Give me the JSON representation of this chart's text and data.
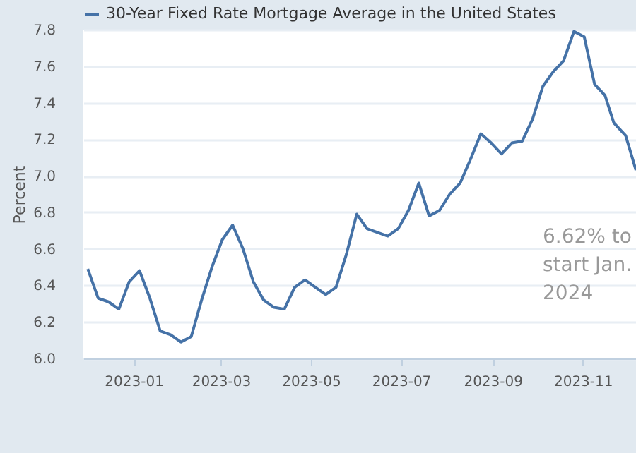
{
  "chart_data": {
    "type": "line",
    "ylabel": "Percent",
    "x": [
      "2022-12-01",
      "2022-12-08",
      "2022-12-15",
      "2022-12-22",
      "2022-12-29",
      "2023-01-05",
      "2023-01-12",
      "2023-01-19",
      "2023-01-26",
      "2023-02-02",
      "2023-02-09",
      "2023-02-16",
      "2023-02-23",
      "2023-03-02",
      "2023-03-09",
      "2023-03-16",
      "2023-03-23",
      "2023-03-30",
      "2023-04-06",
      "2023-04-13",
      "2023-04-20",
      "2023-04-27",
      "2023-05-04",
      "2023-05-11",
      "2023-05-18",
      "2023-05-25",
      "2023-06-01",
      "2023-06-08",
      "2023-06-15",
      "2023-06-22",
      "2023-06-29",
      "2023-07-06",
      "2023-07-13",
      "2023-07-20",
      "2023-07-27",
      "2023-08-03",
      "2023-08-10",
      "2023-08-17",
      "2023-08-24",
      "2023-08-31",
      "2023-09-07",
      "2023-09-14",
      "2023-09-21",
      "2023-09-28",
      "2023-10-05",
      "2023-10-12",
      "2023-10-19",
      "2023-10-26",
      "2023-11-02",
      "2023-11-09",
      "2023-11-16",
      "2023-11-22",
      "2023-11-30",
      "2023-12-07"
    ],
    "series": [
      {
        "name": "30-Year Fixed Rate Mortgage Average in the United States",
        "color": "#4572a7",
        "values": [
          6.49,
          6.33,
          6.31,
          6.27,
          6.42,
          6.48,
          6.33,
          6.15,
          6.13,
          6.09,
          6.12,
          6.32,
          6.5,
          6.65,
          6.73,
          6.6,
          6.42,
          6.32,
          6.28,
          6.27,
          6.39,
          6.43,
          6.39,
          6.35,
          6.39,
          6.57,
          6.79,
          6.71,
          6.69,
          6.67,
          6.71,
          6.81,
          6.96,
          6.78,
          6.81,
          6.9,
          6.96,
          7.09,
          7.23,
          7.18,
          7.12,
          7.18,
          7.19,
          7.31,
          7.49,
          7.57,
          7.63,
          7.79,
          7.76,
          7.5,
          7.44,
          7.29,
          7.22,
          7.03
        ]
      }
    ],
    "xlim": [
      "2022-11-28",
      "2023-12-07"
    ],
    "xticks": [
      "2023-01",
      "2023-03",
      "2023-05",
      "2023-07",
      "2023-09",
      "2023-11"
    ],
    "ylim": [
      6.0,
      7.8
    ],
    "yticks": [
      {
        "value": 6.0,
        "label": "6.0"
      },
      {
        "value": 6.2,
        "label": "6.2"
      },
      {
        "value": 6.4,
        "label": "6.4"
      },
      {
        "value": 6.6,
        "label": "6.6"
      },
      {
        "value": 6.8,
        "label": "6.8"
      },
      {
        "value": 7.0,
        "label": "7.0"
      },
      {
        "value": 7.2,
        "label": "7.2"
      },
      {
        "value": 7.4,
        "label": "7.4"
      },
      {
        "value": 7.6,
        "label": "7.6"
      },
      {
        "value": 7.8,
        "label": "7.8"
      }
    ],
    "annotations": [
      "6.62% to start Jan. 2024"
    ],
    "grid": "y",
    "legend": "top",
    "marker": "none",
    "line_style": "solid"
  }
}
